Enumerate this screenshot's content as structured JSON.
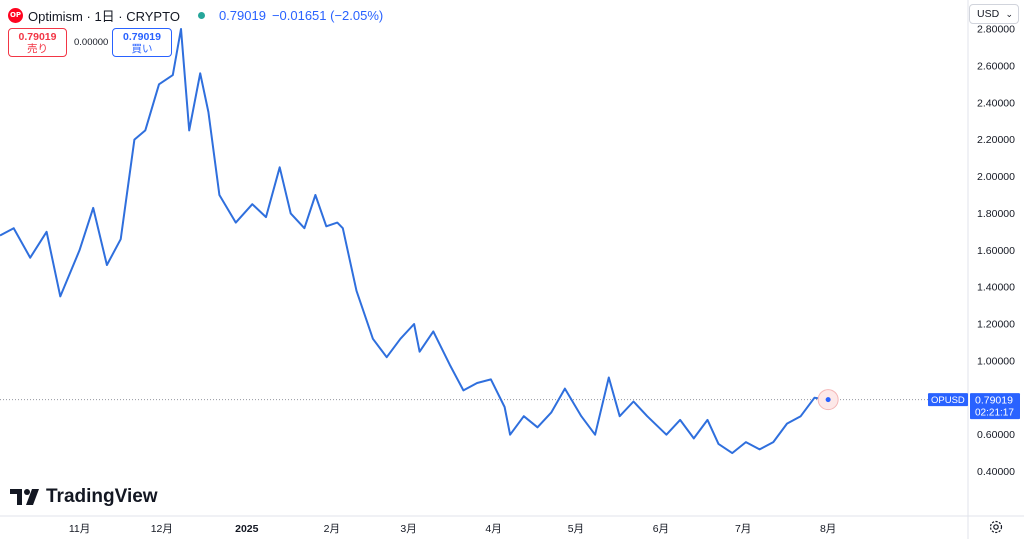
{
  "header": {
    "logo_text": "OP",
    "symbol": "Optimism · 1日 · CRYPTO",
    "price": "0.79019",
    "change": "−0.01651 (−2.05%)"
  },
  "trade": {
    "sell_price": "0.79019",
    "sell_label": "売り",
    "spread": "0.00000",
    "buy_price": "0.79019",
    "buy_label": "買い"
  },
  "currency": {
    "label": "USD"
  },
  "branding": {
    "name": "TradingView"
  },
  "last_badge": {
    "symbol": "OPUSD",
    "price": "0.79019",
    "countdown": "02:21:17"
  },
  "colors": {
    "line": "#2f6fdd",
    "badge": "#2962ff",
    "sell": "#f23645",
    "buy": "#2962ff"
  },
  "chart_data": {
    "type": "line",
    "series": [
      {
        "name": "OPUSD",
        "x": [
          "2024-10-03",
          "2024-10-08",
          "2024-10-14",
          "2024-10-20",
          "2024-10-25",
          "2024-11-01",
          "2024-11-06",
          "2024-11-11",
          "2024-11-16",
          "2024-11-21",
          "2024-11-25",
          "2024-11-30",
          "2024-12-05",
          "2024-12-08",
          "2024-12-11",
          "2024-12-15",
          "2024-12-18",
          "2024-12-22",
          "2024-12-28",
          "2025-01-03",
          "2025-01-08",
          "2025-01-13",
          "2025-01-17",
          "2025-01-22",
          "2025-01-26",
          "2025-01-30",
          "2025-02-03",
          "2025-02-05",
          "2025-02-10",
          "2025-02-16",
          "2025-02-21",
          "2025-02-26",
          "2025-03-03",
          "2025-03-05",
          "2025-03-10",
          "2025-03-16",
          "2025-03-21",
          "2025-03-26",
          "2025-03-31",
          "2025-04-05",
          "2025-04-07",
          "2025-04-12",
          "2025-04-17",
          "2025-04-22",
          "2025-04-27",
          "2025-05-03",
          "2025-05-08",
          "2025-05-13",
          "2025-05-17",
          "2025-05-22",
          "2025-05-27",
          "2025-06-03",
          "2025-06-08",
          "2025-06-13",
          "2025-06-18",
          "2025-06-22",
          "2025-06-27",
          "2025-07-02",
          "2025-07-07",
          "2025-07-12",
          "2025-07-17",
          "2025-07-22",
          "2025-07-27",
          "2025-08-01"
        ],
        "values": [
          1.68,
          1.72,
          1.56,
          1.7,
          1.35,
          1.6,
          1.83,
          1.52,
          1.66,
          2.2,
          2.25,
          2.5,
          2.55,
          2.8,
          2.25,
          2.56,
          2.35,
          1.9,
          1.75,
          1.85,
          1.78,
          2.05,
          1.8,
          1.72,
          1.9,
          1.73,
          1.75,
          1.72,
          1.38,
          1.12,
          1.02,
          1.12,
          1.2,
          1.05,
          1.16,
          0.98,
          0.84,
          0.88,
          0.9,
          0.75,
          0.6,
          0.7,
          0.64,
          0.72,
          0.85,
          0.7,
          0.6,
          0.91,
          0.7,
          0.78,
          0.7,
          0.6,
          0.68,
          0.58,
          0.68,
          0.55,
          0.5,
          0.56,
          0.52,
          0.56,
          0.66,
          0.7,
          0.8,
          0.79
        ]
      }
    ],
    "x_ticks": [
      "11月",
      "12月",
      "2025",
      "2月",
      "3月",
      "4月",
      "5月",
      "6月",
      "7月",
      "8月"
    ],
    "x_tick_dates": [
      "2024-11-01",
      "2024-12-01",
      "2025-01-01",
      "2025-02-01",
      "2025-03-01",
      "2025-04-01",
      "2025-05-01",
      "2025-06-01",
      "2025-07-01",
      "2025-08-01"
    ],
    "y_ticks": [
      "2.80000",
      "2.60000",
      "2.40000",
      "2.20000",
      "2.00000",
      "1.80000",
      "1.60000",
      "1.40000",
      "1.20000",
      "1.00000",
      "0.60000",
      "0.40000"
    ],
    "y_tick_values": [
      2.8,
      2.6,
      2.4,
      2.2,
      2.0,
      1.8,
      1.6,
      1.4,
      1.2,
      1.0,
      0.6,
      0.4
    ],
    "ylim": [
      0.3,
      2.8
    ],
    "xlim": [
      "2024-10-03",
      "2025-09-21"
    ],
    "last_value": 0.79019,
    "grid": false
  }
}
